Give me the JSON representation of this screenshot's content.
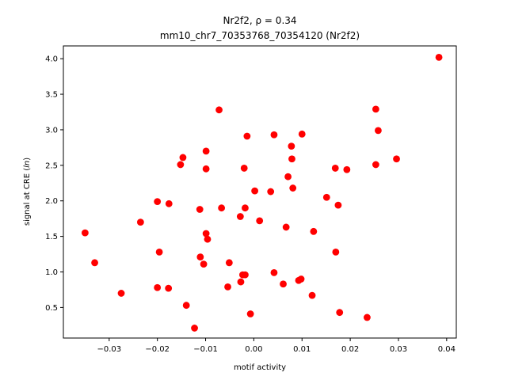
{
  "chart_data": {
    "type": "scatter",
    "title_line1": "Nr2f2, ρ = 0.34",
    "title_line2": "mm10_chr7_70353768_70354120 (Nr2f2)",
    "xlabel": "motif activity",
    "ylabel": "signal at CRE (ln)",
    "xlim": [
      -0.0395,
      0.042
    ],
    "ylim": [
      0.07,
      4.18
    ],
    "x_ticks": [
      -0.03,
      -0.02,
      -0.01,
      0.0,
      0.01,
      0.02,
      0.03,
      0.04
    ],
    "x_tick_labels": [
      "−0.03",
      "−0.02",
      "−0.01",
      "0.00",
      "0.01",
      "0.02",
      "0.03",
      "0.04"
    ],
    "y_ticks": [
      0.5,
      1.0,
      1.5,
      2.0,
      2.5,
      3.0,
      3.5,
      4.0
    ],
    "y_tick_labels": [
      "0.5",
      "1.0",
      "1.5",
      "2.0",
      "2.5",
      "3.0",
      "3.5",
      "4.0"
    ],
    "grid": false,
    "marker_color": "#ff0000",
    "points": [
      {
        "x": -0.035,
        "y": 1.55
      },
      {
        "x": -0.033,
        "y": 1.13
      },
      {
        "x": -0.0275,
        "y": 0.7
      },
      {
        "x": -0.0235,
        "y": 1.7
      },
      {
        "x": -0.02,
        "y": 1.99
      },
      {
        "x": -0.0196,
        "y": 1.28
      },
      {
        "x": -0.02,
        "y": 0.78
      },
      {
        "x": -0.0176,
        "y": 1.96
      },
      {
        "x": -0.0177,
        "y": 0.77
      },
      {
        "x": -0.0152,
        "y": 2.51
      },
      {
        "x": -0.0147,
        "y": 2.61
      },
      {
        "x": -0.014,
        "y": 0.53
      },
      {
        "x": -0.0123,
        "y": 0.21
      },
      {
        "x": -0.0112,
        "y": 1.88
      },
      {
        "x": -0.0111,
        "y": 1.21
      },
      {
        "x": -0.0104,
        "y": 1.11
      },
      {
        "x": -0.0099,
        "y": 2.7
      },
      {
        "x": -0.0099,
        "y": 2.45
      },
      {
        "x": -0.0099,
        "y": 1.54
      },
      {
        "x": -0.0096,
        "y": 1.46
      },
      {
        "x": -0.0072,
        "y": 3.28
      },
      {
        "x": -0.0067,
        "y": 1.9
      },
      {
        "x": -0.0054,
        "y": 0.79
      },
      {
        "x": -0.0051,
        "y": 1.13
      },
      {
        "x": -0.0028,
        "y": 1.78
      },
      {
        "x": -0.0027,
        "y": 0.86
      },
      {
        "x": -0.0023,
        "y": 0.96
      },
      {
        "x": -0.002,
        "y": 2.46
      },
      {
        "x": -0.0018,
        "y": 1.9
      },
      {
        "x": -0.0018,
        "y": 0.96
      },
      {
        "x": -0.0014,
        "y": 2.91
      },
      {
        "x": -0.0007,
        "y": 0.41
      },
      {
        "x": 0.0002,
        "y": 2.14
      },
      {
        "x": 0.0012,
        "y": 1.72
      },
      {
        "x": 0.0035,
        "y": 2.13
      },
      {
        "x": 0.0042,
        "y": 2.93
      },
      {
        "x": 0.0042,
        "y": 0.99
      },
      {
        "x": 0.0061,
        "y": 0.83
      },
      {
        "x": 0.0067,
        "y": 1.63
      },
      {
        "x": 0.0071,
        "y": 2.34
      },
      {
        "x": 0.0078,
        "y": 2.77
      },
      {
        "x": 0.0079,
        "y": 2.59
      },
      {
        "x": 0.0081,
        "y": 2.18
      },
      {
        "x": 0.0093,
        "y": 0.88
      },
      {
        "x": 0.0098,
        "y": 0.9
      },
      {
        "x": 0.01,
        "y": 2.94
      },
      {
        "x": 0.0121,
        "y": 0.67
      },
      {
        "x": 0.0124,
        "y": 1.57
      },
      {
        "x": 0.0151,
        "y": 2.05
      },
      {
        "x": 0.0169,
        "y": 2.46
      },
      {
        "x": 0.017,
        "y": 1.28
      },
      {
        "x": 0.0175,
        "y": 1.94
      },
      {
        "x": 0.0178,
        "y": 0.43
      },
      {
        "x": 0.0193,
        "y": 2.44
      },
      {
        "x": 0.0235,
        "y": 0.36
      },
      {
        "x": 0.0253,
        "y": 3.29
      },
      {
        "x": 0.0253,
        "y": 2.51
      },
      {
        "x": 0.0258,
        "y": 2.99
      },
      {
        "x": 0.0296,
        "y": 2.59
      },
      {
        "x": 0.0384,
        "y": 4.02
      }
    ]
  }
}
